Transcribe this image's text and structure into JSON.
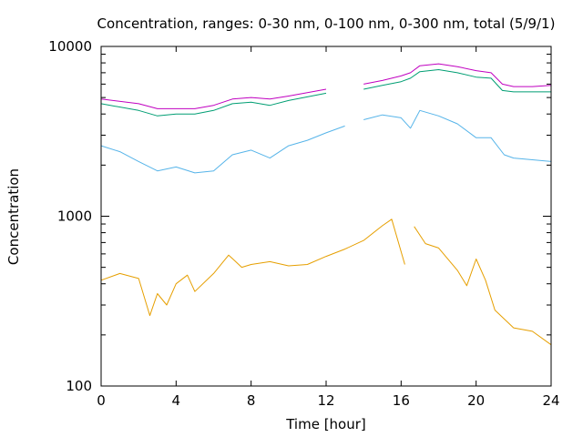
{
  "chart_data": {
    "type": "line",
    "title": "Concentration, ranges: 0-30 nm, 0-100 nm, 0-300 nm, total (5/9/1)",
    "xlabel": "Time [hour]",
    "ylabel": "Concentration",
    "xlim": [
      0,
      24
    ],
    "ylim": [
      100,
      10000
    ],
    "yscale": "log",
    "grid": false,
    "legend": "none",
    "xticks": [
      "0",
      "4",
      "8",
      "12",
      "16",
      "20",
      "24"
    ],
    "yticks": [
      "100",
      "1000",
      "10000"
    ],
    "series": [
      {
        "color": "#c000c0",
        "gap_after_index": 10,
        "x": [
          0,
          2,
          3,
          4,
          5,
          6,
          7,
          8,
          9,
          10,
          12,
          14,
          15,
          16,
          16.5,
          17,
          18,
          19,
          20,
          20.8,
          21.4,
          22,
          23,
          24
        ],
        "y": [
          4900,
          4600,
          4300,
          4300,
          4300,
          4500,
          4900,
          5000,
          4900,
          5100,
          5600,
          6000,
          6300,
          6700,
          7000,
          7700,
          7900,
          7600,
          7200,
          7000,
          6000,
          5800,
          5800,
          5900
        ]
      },
      {
        "color": "#009e73",
        "gap_after_index": 10,
        "x": [
          0,
          2,
          3,
          4,
          5,
          6,
          7,
          8,
          9,
          10,
          12,
          14,
          15,
          16,
          16.5,
          17,
          18,
          19,
          20,
          20.8,
          21.4,
          22,
          23,
          24
        ],
        "y": [
          4600,
          4200,
          3900,
          4000,
          4000,
          4200,
          4600,
          4700,
          4500,
          4800,
          5300,
          5600,
          5900,
          6200,
          6500,
          7100,
          7300,
          7000,
          6600,
          6500,
          5500,
          5400,
          5400,
          5400
        ]
      },
      {
        "color": "#56b4e9",
        "gap_after_index": 13,
        "x": [
          0,
          1,
          2,
          3,
          4,
          5,
          6,
          7,
          8,
          9,
          10,
          11,
          12,
          13,
          14,
          15,
          16,
          16.5,
          17,
          18,
          19,
          20,
          20.8,
          21.5,
          22,
          23,
          24
        ],
        "y": [
          2600,
          2400,
          2100,
          1850,
          1950,
          1800,
          1850,
          2300,
          2450,
          2200,
          2600,
          2800,
          3100,
          3400,
          3700,
          3950,
          3800,
          3300,
          4200,
          3900,
          3500,
          2900,
          2900,
          2300,
          2200,
          2150,
          2100
        ]
      },
      {
        "color": "#e69f00",
        "gap_after_index": 21,
        "x": [
          0,
          1,
          2,
          2.6,
          3,
          3.5,
          4,
          4.6,
          5,
          6,
          6.8,
          7.5,
          8,
          9,
          10,
          11,
          12,
          13,
          14,
          15,
          15.5,
          16.2,
          16.7,
          17.3,
          18,
          19,
          19.5,
          20,
          20.5,
          21,
          22,
          23,
          24
        ],
        "y": [
          420,
          460,
          430,
          260,
          350,
          300,
          400,
          450,
          360,
          460,
          590,
          500,
          520,
          540,
          510,
          520,
          580,
          640,
          720,
          880,
          960,
          520,
          870,
          690,
          650,
          480,
          390,
          560,
          420,
          280,
          220,
          210,
          175
        ]
      }
    ]
  }
}
